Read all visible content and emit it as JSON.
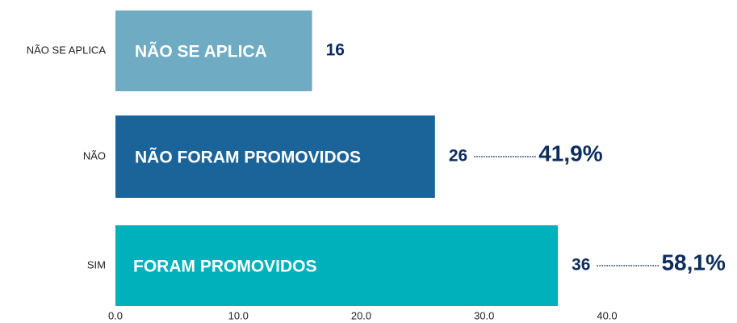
{
  "chart_data": {
    "type": "barh",
    "categories": [
      "NÃO SE APLICA",
      "NÃO",
      "SIM"
    ],
    "values": [
      16,
      26,
      36
    ],
    "colors": [
      "#6fabc3",
      "#1b6499",
      "#00b0bb"
    ],
    "bar_labels": [
      "NÃO SE APLICA",
      "NÃO FORAM PROMOVIDOS",
      "FORAM PROMOVIDOS"
    ],
    "percentages": [
      null,
      41.9,
      58.1
    ],
    "percentage_labels": [
      null,
      "41,9%",
      "58,1%"
    ],
    "xlim": [
      0,
      40
    ],
    "xticks": [
      {
        "value": 0,
        "label": "0.0"
      },
      {
        "value": 10,
        "label": "10.0"
      },
      {
        "value": 20,
        "label": "20.0"
      },
      {
        "value": 30,
        "label": "30.0"
      },
      {
        "value": 40,
        "label": "40.0"
      }
    ]
  }
}
